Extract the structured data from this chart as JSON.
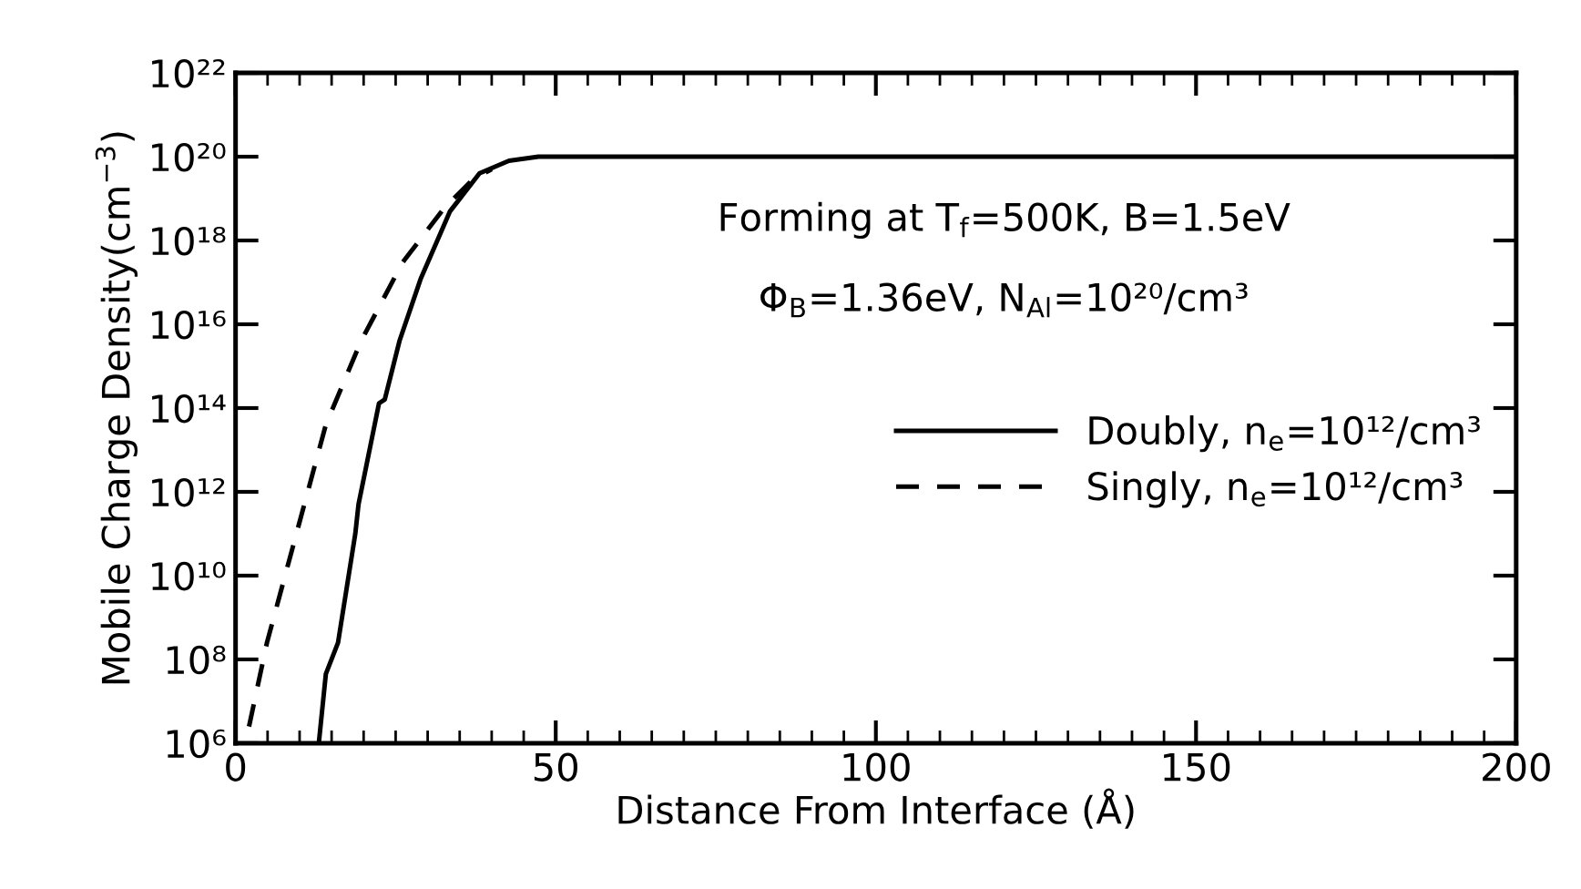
{
  "chart_data": {
    "type": "line",
    "xlabel": "Distance From Interface (Å)",
    "ylabel": "Mobile Charge Density(cm$^{−3}$)",
    "log": "y",
    "xlim": [
      0,
      200
    ],
    "xticks": [
      0,
      50,
      100,
      150,
      200
    ],
    "ylim": [
      1000000.0,
      1e+22
    ],
    "yticks": [
      {
        "value": 1000000.0,
        "label": "10⁶"
      },
      {
        "value": 100000000.0,
        "label": "10⁸"
      },
      {
        "value": 10000000000.0,
        "label": "10¹⁰"
      },
      {
        "value": 1000000000000.0,
        "label": "10¹²"
      },
      {
        "value": 100000000000000.0,
        "label": "10¹⁴"
      },
      {
        "value": 1e+16,
        "label": "10¹⁶"
      },
      {
        "value": 1e+18,
        "label": "10¹⁸"
      },
      {
        "value": 1e+20,
        "label": "10²⁰"
      },
      {
        "value": 1e+22,
        "label": "10²²"
      }
    ],
    "grid": false,
    "legend": "right",
    "marker": "none",
    "annotations": [
      "Forming at T$_{f}$=500K, B=1.5eV",
      "Φ$_{B}$=1.36eV, N$_{Al}$=10²⁰/cm³"
    ],
    "series": [
      {
        "name": "Doubly, n$_{e}$=10¹²/cm³",
        "color": "#000000",
        "line_style": "solid",
        "x": [
          13.0,
          14.1,
          16.0,
          18.7,
          19.2,
          22.4,
          23.3,
          25.6,
          28.9,
          33.5,
          38.1,
          42.7,
          47.3,
          55,
          100,
          150,
          200
        ],
        "values": [
          1000000.0,
          45000000.0,
          250000000.0,
          100000000000.0,
          500000000000.0,
          130000000000000.0,
          160000000000000.0,
          4000000000000000.0,
          1.2e+17,
          5e+18,
          4e+19,
          8e+19,
          1e+20,
          1e+20,
          1e+20,
          1e+20,
          1e+20
        ]
      },
      {
        "name": "Singly, n$_{e}$=10¹²/cm³",
        "color": "#000000",
        "line_style": "dashed",
        "x": [
          2.1,
          4.9,
          9.5,
          14.1,
          19.6,
          26.1,
          32.6,
          37.2,
          40.0
        ],
        "values": [
          2500000.0,
          250000000.0,
          100000000000.0,
          40000000000000.0,
          4000000000000000.0,
          3e+17,
          6e+18,
          3e+19,
          5e+19
        ]
      }
    ]
  }
}
